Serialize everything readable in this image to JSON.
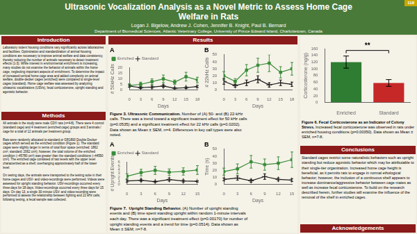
{
  "title": "Ultrasonic Vocalization Analysis as a Novel Metric to Assess Home Cage\nWelfare in Rats",
  "poster_number": "118",
  "authors": "Logan J. Bigelow, Andrew J. Cohen, Jennifer B. Knight, Paul B. Bernard",
  "affiliation": "Department of Biomedical Sciences, Atlantic Veterinary College, University of Prince Edward Island, Charlottetown, Canada",
  "sections": [
    {
      "heading": "Introduction",
      "text": "Laboratory rodent housing conditions vary significantly across laboratories\nand facilities. Optimization and standardization of animal housing\nconditions are necessary to improve animal welfare and data consistency,\nthereby reducing the number of animals necessary to detect treatment\neffects (1-3). While interest in environmental enrichment is increasing,\nmany studies do not examine the behavior of animals within the home\ncage, neglecting important aspects of enrichment. To determine the impact\nof increased vertical home cage area and added complexity on animal\nwelfare, double-decker cages (enriched) were compared to single-level\ncages (standard). Home cage welfare was assessed by analyzing\nultrasonic vocalizations (USVs), fecal corticosterone, upright standing and\nagonistic behavior."
    },
    {
      "heading": "Methods",
      "text": "All animals in the study were male CD® rats (n=4-8). There were 4 control\n(standard cage) and 4 treatment (enriched cage) groups and 3 animals /\ncage for a total of 12 animals per treatment group.\n\nRats were randomly allocated to standard or GR1800 Double Decker\ncages which served as the enriched condition (Figure 1). The standard\ncages were slightly larger in terms of total floor space (enriched: 1862\ncm², standard: 2062 cm²); however, the total volume of the enriched\ncondition (~45780 cm²) was greater than the standard conditions (~44550\ncm²). The enriched cage consisted of two levels with the upper level\ncharacterized as a shelf, overhanging approximately half of the lower\nlevel.\n\nOn testing days, the animals were transported to the testing suite in their\nhome cages and USV- and video-recordings were performed. Videos were\nassessed for upright standing behavior. USV-recordings occurred every\nthree days for 18 days. Video-recordings occurred every three days for 15\ndays. On day 13, a single 30-minute USV- and video-recording were\nperformed to assess the relationship between fighting and 22 kHz calls;\nfollowing testing, a fecal sample was collected."
    },
    {
      "heading": "Results"
    },
    {
      "heading": "Conclusions",
      "text": "Standard cages restrict some naturalistic behaviors such as upright\nstanding but reduce agonistic behavior which may be attributable to\ntheir single-tier organization. Increased home cage height is\nbeneficial, as it permits rats to engage in normal ethological\nbehavior; however, the inclusion of a continuous shelf appears to\nincrease dominance/aggressive behavior between cage mates as\nwell as increase fecal corticosterone. To build on the research\ndescribed herein, further studies will examine the influence of the\nremoval of the shelf in enriched cages."
    },
    {
      "heading": "Acknowledgements"
    }
  ],
  "captions": [
    {
      "bold": "Figure 3. Ultrasonic Communication.",
      "text": " Number of (A) 50- and (B) 22-kHz\ncalls. There was a trend toward a significant treatment effect for 50 kHz calls\n(p=0.0535) and a significant treatment effect for 22 kHz calls (p=0.0202).\nData shown as Mean ± SEM, n=4. Differences in key call types were also\nnoted."
    },
    {
      "bold": "Figure 7.  Upright Standing Behavior.",
      "text": " (A) Number of upright standing\nevents and (B) time spent standing upright within random 1-minute intervals\neach day. There was a significant treatment effect (p=0.00170) for number of\nupright standing events and a trend for time (p=0.0514). Data shown as\nMean ± SEM, n=7-8."
    },
    {
      "bold": "Figure 6. Fecal Corticosterone as an Indicator of Colony\nStress.",
      "text": " Increased fecal corticosterone was observed in rats under\nenriched housing conditions (p=0.00350). Data shown as Mean ±\nSEM, n=7-8."
    }
  ],
  "chart_data": [
    {
      "type": "line",
      "title": "A",
      "x_label": "Days",
      "y_label": "# 50kHz Calls",
      "x": [
        0,
        3,
        6,
        9,
        12,
        15,
        18
      ],
      "xlim": [
        0,
        18
      ],
      "xticks": [
        0,
        3,
        6,
        9,
        12,
        15,
        18
      ],
      "ylim": [
        0,
        20
      ],
      "yticks": [
        0,
        5,
        10,
        15,
        20
      ],
      "grid": false,
      "legend": "upper left",
      "series": [
        {
          "name": "Enriched",
          "color": "#3a8c3a",
          "marker": "square",
          "values": [
            4.0,
            5.0,
            7.5,
            10.0,
            7.0,
            12.0,
            9.0
          ],
          "errors": [
            1.5,
            2.0,
            2.5,
            3.5,
            2.0,
            4.0,
            2.5
          ]
        },
        {
          "name": "Standard",
          "color": "#1a1a1a",
          "marker": "plus",
          "values": [
            3.5,
            2.0,
            2.5,
            3.5,
            1.5,
            2.0,
            3.0
          ],
          "errors": [
            1.0,
            0.8,
            1.0,
            1.2,
            0.6,
            0.8,
            1.0
          ]
        }
      ]
    },
    {
      "type": "line",
      "title": "B",
      "x_label": "Days",
      "y_label": "# 22kHz Calls",
      "x": [
        0,
        3,
        6,
        9,
        12,
        15,
        18
      ],
      "xlim": [
        0,
        18
      ],
      "xticks": [
        0,
        3,
        6,
        9,
        12,
        15,
        18
      ],
      "ylim": [
        0,
        50
      ],
      "yticks": [
        0,
        10,
        20,
        30,
        40,
        50
      ],
      "grid": false,
      "series": [
        {
          "color": "#3a8c3a",
          "marker": "square",
          "values": [
            20,
            12,
            28,
            35,
            38,
            25,
            30
          ],
          "errors": [
            6,
            4,
            8,
            10,
            12,
            8,
            9
          ]
        },
        {
          "color": "#1a1a1a",
          "marker": "plus",
          "values": [
            12,
            6,
            10,
            15,
            7,
            10,
            8
          ],
          "errors": [
            4,
            2,
            4,
            5,
            3,
            4,
            3
          ]
        }
      ]
    },
    {
      "type": "line",
      "title": "A",
      "x_label": "Days",
      "y_label": "# Upright Events",
      "x": [
        0,
        3,
        6,
        9,
        12,
        15
      ],
      "xlim": [
        0,
        15
      ],
      "xticks": [
        0,
        3,
        6,
        9,
        12,
        15
      ],
      "ylim": [
        0,
        6
      ],
      "yticks": [
        0,
        1,
        2,
        3,
        4,
        5,
        6
      ],
      "grid": false,
      "legend": "upper left",
      "series": [
        {
          "name": "Enriched",
          "color": "#3a8c3a",
          "marker": "square",
          "values": [
            2.2,
            3.2,
            3.8,
            3.3,
            3.5,
            3.9
          ],
          "errors": [
            0.7,
            0.9,
            1.1,
            0.9,
            1.0,
            1.2
          ]
        },
        {
          "name": "Standard",
          "color": "#1a1a1a",
          "marker": "plus",
          "values": [
            0.9,
            1.1,
            0.7,
            1.3,
            0.9,
            0.8
          ],
          "errors": [
            0.3,
            0.3,
            0.2,
            0.4,
            0.3,
            0.2
          ]
        }
      ]
    },
    {
      "type": "line",
      "title": "B",
      "x_label": "Days",
      "y_label": "Time (s)",
      "x": [
        0,
        3,
        6,
        9,
        12,
        15
      ],
      "xlim": [
        0,
        15
      ],
      "xticks": [
        0,
        3,
        6,
        9,
        12,
        15
      ],
      "ylim": [
        0,
        50
      ],
      "yticks": [
        0,
        10,
        20,
        30,
        40,
        50
      ],
      "grid": false,
      "series": [
        {
          "color": "#3a8c3a",
          "marker": "square",
          "values": [
            18,
            22,
            32,
            28,
            30,
            35
          ],
          "errors": [
            5,
            7,
            9,
            8,
            9,
            11
          ]
        },
        {
          "color": "#1a1a1a",
          "marker": "plus",
          "values": [
            7,
            9,
            5,
            11,
            7,
            6
          ],
          "errors": [
            2,
            3,
            2,
            4,
            2,
            2
          ]
        }
      ]
    },
    {
      "type": "bar",
      "y_label": "Corticosterone (ng/g)",
      "categories": [
        "Enriched",
        "Standard"
      ],
      "values": [
        120,
        58
      ],
      "errors": [
        18,
        10
      ],
      "colors": [
        "#2e7d32",
        "#c62828"
      ],
      "ylim": [
        0,
        160
      ],
      "yticks": [
        0,
        20,
        40,
        60,
        80,
        100,
        120,
        140,
        160
      ],
      "grid": false,
      "annotations": [
        {
          "text": "**",
          "between": [
            "Enriched",
            "Standard"
          ]
        }
      ]
    }
  ]
}
